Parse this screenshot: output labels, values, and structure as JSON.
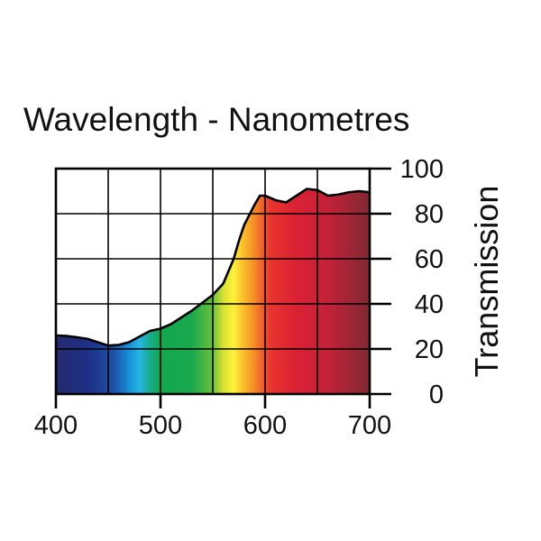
{
  "chart_data": {
    "type": "area",
    "title": "Wavelength - Nanometres",
    "xlabel": "",
    "ylabel": "Transmission",
    "xlim": [
      400,
      700
    ],
    "ylim": [
      0,
      100
    ],
    "x_ticks": [
      400,
      500,
      600,
      700
    ],
    "x_grid": [
      400,
      450,
      500,
      550,
      600,
      650,
      700
    ],
    "y_ticks": [
      0,
      20,
      40,
      60,
      80,
      100
    ],
    "grid": true,
    "fill": "visible-spectrum",
    "series": [
      {
        "name": "Transmission",
        "x": [
          400,
          410,
          420,
          430,
          440,
          450,
          460,
          470,
          480,
          490,
          500,
          510,
          520,
          530,
          540,
          550,
          560,
          570,
          575,
          580,
          590,
          595,
          600,
          610,
          620,
          630,
          640,
          650,
          660,
          670,
          680,
          690,
          700
        ],
        "values": [
          26,
          25.8,
          25.2,
          24.5,
          23,
          21.5,
          21.8,
          23,
          25.5,
          28,
          29,
          31,
          34,
          37,
          40.5,
          44,
          49,
          60,
          68,
          75,
          84,
          88,
          88,
          86,
          85,
          88,
          91,
          90.5,
          88,
          88.5,
          89.5,
          90,
          89.5
        ]
      }
    ],
    "spectrum_colors": [
      {
        "nm": 400,
        "color": "#262a6e"
      },
      {
        "nm": 430,
        "color": "#1e2f86"
      },
      {
        "nm": 455,
        "color": "#1f4fa6"
      },
      {
        "nm": 470,
        "color": "#1690d8"
      },
      {
        "nm": 480,
        "color": "#26b7e2"
      },
      {
        "nm": 490,
        "color": "#1aaa8c"
      },
      {
        "nm": 500,
        "color": "#12a84e"
      },
      {
        "nm": 530,
        "color": "#1aa84e"
      },
      {
        "nm": 550,
        "color": "#6cc03a"
      },
      {
        "nm": 560,
        "color": "#d8e032"
      },
      {
        "nm": 570,
        "color": "#fff13c"
      },
      {
        "nm": 578,
        "color": "#fbc42a"
      },
      {
        "nm": 590,
        "color": "#f58a28"
      },
      {
        "nm": 605,
        "color": "#e9342e"
      },
      {
        "nm": 630,
        "color": "#da2134"
      },
      {
        "nm": 660,
        "color": "#c32138"
      },
      {
        "nm": 700,
        "color": "#7e2a33"
      }
    ]
  }
}
